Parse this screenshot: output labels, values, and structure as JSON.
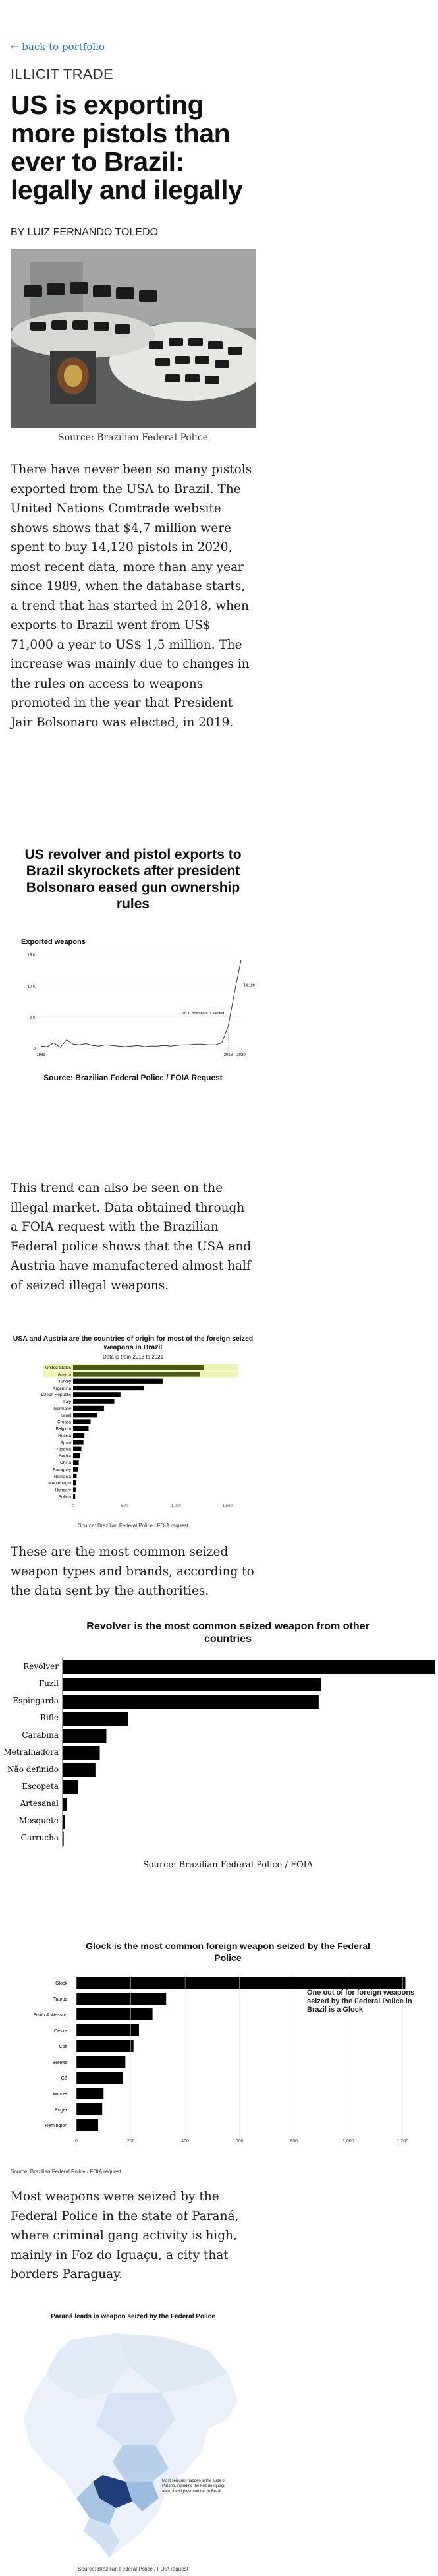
{
  "nav": {
    "back_label": "← back to portfolio"
  },
  "article": {
    "kicker": "ILLICIT TRADE",
    "headline": "US is exporting more pistols than ever to Brazil: legally and ilegally",
    "byline": "BY LUIZ FERNANDO TOLEDO",
    "hero_caption": "Source: Brazilian Federal Police",
    "para1": "There have never been so many pistols exported from the USA to Brazil. The United Nations Comtrade website shows shows that $4,7 million were spent to buy 14,120 pistols in 2020, most recent data, more than any year since 1989, when the database starts, a trend that has started in 2018, when exports to Brazil went from US$ 71,000 a year to US$ 1,5 million. The increase was mainly due to changes in the rules on access to weapons promoted in the year that President Jair Bolsonaro was elected, in 2019.",
    "para2": "This trend can also be seen on the illegal market. Data obtained through a FOIA request with the Brazilian Federal police shows that the USA and Austria have manufactered almost half of seized illegal weapons.",
    "para3": "These are the most common seized weapon types and brands, according to the data sent by the authorities.",
    "para4": "Most weapons were seized by the Federal Police in the state of Paraná, where criminal gang activity is high, mainly in Foz do Iguaçu, a city that borders Paraguay."
  },
  "colors": {
    "link": "#2a7ab8",
    "highlight": "#eef5b0",
    "bar": "#000000"
  },
  "chart1": {
    "title": "US revolver and pistol exports to Brazil skyrockets after president Bolsonaro eased gun ownership rules",
    "source": "Source: Brazilian Federal Police / FOIA Request",
    "chart_data": {
      "type": "line",
      "title": "US revolver and pistol exports to Brazil skyrockets after president Bolsonaro eased gun ownership rules",
      "ylabel": "Exported weapons",
      "x": [
        1989,
        1990,
        1991,
        1992,
        1993,
        1994,
        1995,
        1996,
        1997,
        1998,
        1999,
        2000,
        2001,
        2002,
        2003,
        2004,
        2005,
        2006,
        2007,
        2008,
        2009,
        2010,
        2011,
        2012,
        2013,
        2014,
        2015,
        2016,
        2017,
        2018,
        2019,
        2020
      ],
      "values": [
        300,
        200,
        800,
        100,
        1300,
        600,
        500,
        700,
        400,
        300,
        500,
        400,
        300,
        200,
        300,
        400,
        200,
        300,
        300,
        400,
        300,
        400,
        500,
        500,
        600,
        600,
        500,
        500,
        800,
        3500,
        9000,
        14120
      ],
      "ylim": [
        0,
        15000
      ],
      "y_ticks": [
        "15 K",
        "10 K",
        "5 K",
        "0"
      ],
      "x_ticks": [
        "1989",
        "2018",
        "2020"
      ],
      "annotations": [
        "Jan 1: Bolsonaro is elected",
        "14,120 arms in 2020"
      ]
    }
  },
  "chart2": {
    "title": "USA and Austria are the countries of origin for most of the foreign seized weapons in Brazil",
    "subtitle": "Data is from 2013 to 2021",
    "source": "Source: Brazilian Federal Police / FOIA request",
    "chart_data": {
      "type": "bar",
      "categories": [
        "United States",
        "Austria",
        "Turkey",
        "Argentina",
        "Czech Republic",
        "Italy",
        "Germany",
        "Israel",
        "Croatia",
        "Belgium",
        "Russia",
        "Spain",
        "Albania",
        "Serbia",
        "China",
        "Paraguay",
        "Romania",
        "Montenegro",
        "Hungary",
        "Bolivia"
      ],
      "values": [
        1270,
        1230,
        870,
        690,
        460,
        400,
        300,
        230,
        170,
        150,
        110,
        100,
        80,
        70,
        55,
        45,
        35,
        30,
        25,
        20
      ],
      "highlight": [
        "United States",
        "Austria"
      ],
      "x_ticks": [
        "0",
        "500",
        "1,000",
        "1,500"
      ],
      "xlim": [
        0,
        1600
      ]
    }
  },
  "chart3": {
    "title": "Revolver is the most common seized weapon from other countries",
    "source": "Source: Brazilian Federal Police / FOIA",
    "chart_data": {
      "type": "bar",
      "categories": [
        "Revólver",
        "Fuzil",
        "Espingarda",
        "Rifle",
        "Carabina",
        "Metralhadora",
        "Não definido",
        "Escopeta",
        "Artesanal",
        "Mosquete",
        "Garrucha"
      ],
      "values": [
        1700,
        1180,
        1170,
        300,
        200,
        170,
        150,
        70,
        20,
        10,
        5
      ],
      "xlim": [
        0,
        1700
      ]
    }
  },
  "chart4": {
    "title": "Glock is the most common foreign weapon seized by the Federal Police",
    "annotation": "One out of for foreign weapons seized by the Federal Police in Brazil is a Glock",
    "source": "Source: Brazilian Federal Police / FOIA request",
    "chart_data": {
      "type": "bar",
      "categories": [
        "Glock",
        "Taurus",
        "Smith & Wesson",
        "Ceska",
        "Colt",
        "Beretta",
        "CZ",
        "Winnet",
        "Ruger",
        "Remington"
      ],
      "values": [
        1210,
        330,
        280,
        230,
        210,
        180,
        170,
        100,
        95,
        80
      ],
      "x_ticks": [
        "0",
        "200",
        "400",
        "600",
        "800",
        "1,000",
        "1,200"
      ],
      "xlim": [
        0,
        1250
      ]
    }
  },
  "chart5": {
    "title": "Paraná leads in weapon seized by the Federal Police",
    "annotation": "Most seizures happen in the state of Paraná, including the Foz do Iguaçu area, the highest number in Brazil",
    "source": "Source: Brazilian Federal Police / FOIA request"
  }
}
